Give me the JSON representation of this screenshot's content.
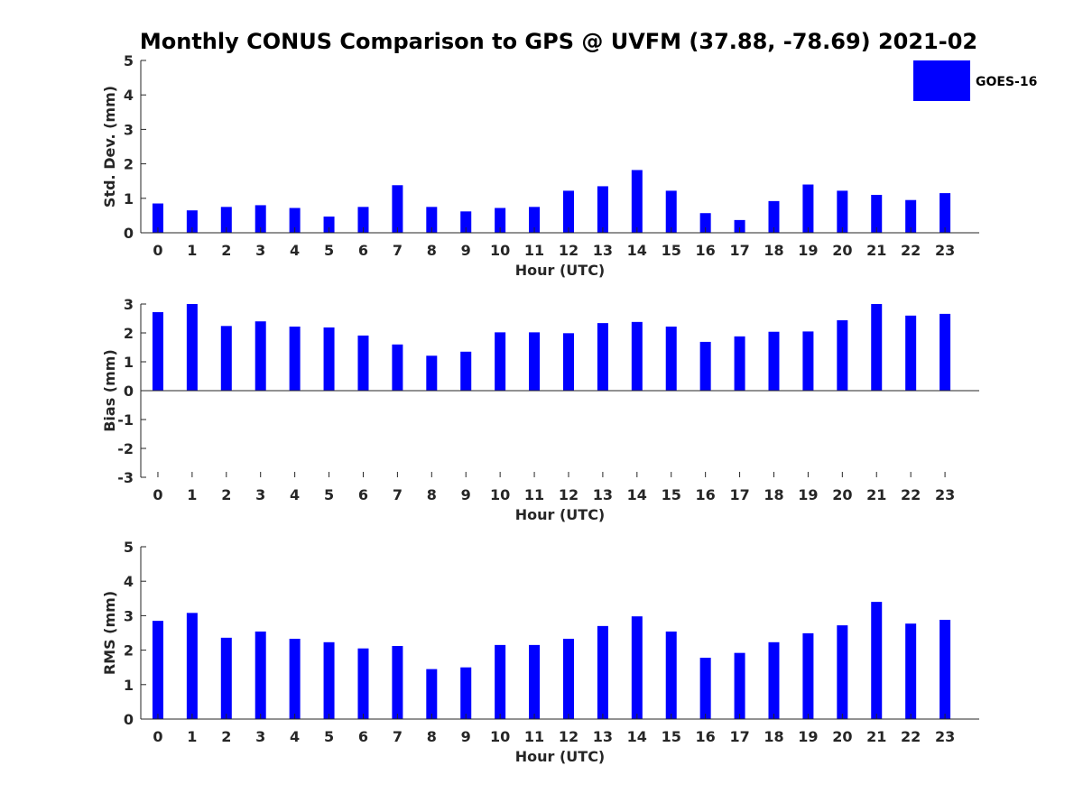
{
  "chart_data": {
    "type": "bar",
    "title": "Monthly CONUS Comparison to GPS @ UVFM (37.88, -78.69) 2021-02",
    "legend": {
      "labels": [
        "GOES-16"
      ],
      "placement": "top-right",
      "color": "#0000ff"
    },
    "categories": [
      "0",
      "1",
      "2",
      "3",
      "4",
      "5",
      "6",
      "7",
      "8",
      "9",
      "10",
      "11",
      "12",
      "13",
      "14",
      "15",
      "16",
      "17",
      "18",
      "19",
      "20",
      "21",
      "22",
      "23"
    ],
    "panels": [
      {
        "name": "std-dev",
        "ylabel": "Std. Dev. (mm)",
        "xlabel": "Hour (UTC)",
        "ylim": [
          0,
          5
        ],
        "yticks": [
          "0",
          "1",
          "2",
          "3",
          "4",
          "5"
        ],
        "series": [
          {
            "name": "GOES-16",
            "values": [
              0.85,
              0.65,
              0.75,
              0.8,
              0.72,
              0.47,
              0.75,
              1.38,
              0.75,
              0.62,
              0.72,
              0.75,
              1.22,
              1.35,
              1.82,
              1.22,
              0.57,
              0.37,
              0.92,
              1.4,
              1.22,
              1.1,
              0.95,
              1.15
            ]
          }
        ]
      },
      {
        "name": "bias",
        "ylabel": "Bias (mm)",
        "xlabel": "Hour (UTC)",
        "ylim": [
          -3,
          3
        ],
        "yticks": [
          "-3",
          "-2",
          "-1",
          "0",
          "1",
          "2",
          "3"
        ],
        "series": [
          {
            "name": "GOES-16",
            "values": [
              2.72,
              3.0,
              2.24,
              2.4,
              2.22,
              2.19,
              1.91,
              1.6,
              1.21,
              1.35,
              2.02,
              2.02,
              1.99,
              2.34,
              2.38,
              2.22,
              1.69,
              1.88,
              2.04,
              2.05,
              2.44,
              3.0,
              2.6,
              2.66
            ]
          }
        ]
      },
      {
        "name": "rms",
        "ylabel": "RMS (mm)",
        "xlabel": "Hour (UTC)",
        "ylim": [
          0,
          5
        ],
        "yticks": [
          "0",
          "1",
          "2",
          "3",
          "4",
          "5"
        ],
        "series": [
          {
            "name": "GOES-16",
            "values": [
              2.85,
              3.08,
              2.36,
              2.54,
              2.33,
              2.23,
              2.05,
              2.12,
              1.45,
              1.5,
              2.15,
              2.15,
              2.33,
              2.7,
              2.98,
              2.54,
              1.78,
              1.92,
              2.23,
              2.49,
              2.72,
              3.4,
              2.77,
              2.88
            ]
          }
        ]
      }
    ]
  }
}
